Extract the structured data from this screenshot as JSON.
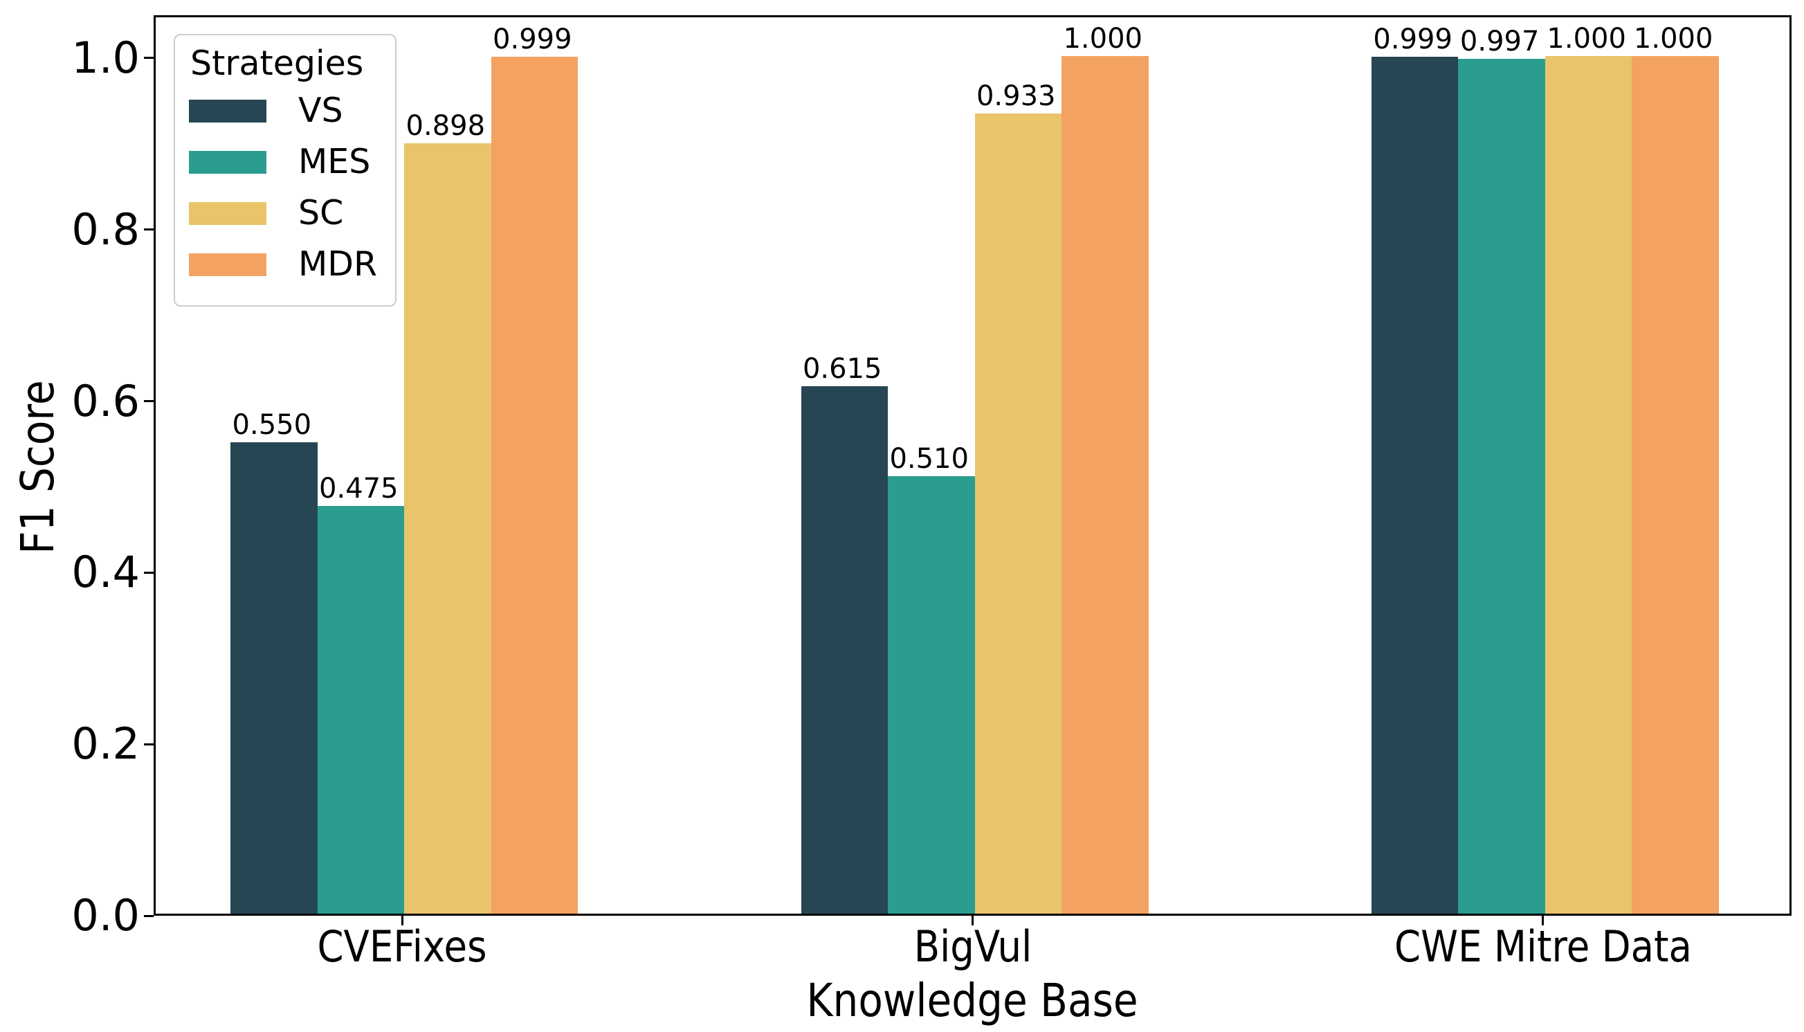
{
  "chart_data": {
    "type": "bar",
    "title": "",
    "xlabel": "Knowledge Base",
    "ylabel": "F1 Score",
    "categories": [
      "CVEFixes",
      "BigVul",
      "CWE Mitre Data"
    ],
    "series": [
      {
        "name": "VS",
        "color": "#264653",
        "values": [
          0.55,
          0.615,
          0.999
        ],
        "labels": [
          "0.550",
          "0.615",
          "0.999"
        ]
      },
      {
        "name": "MES",
        "color": "#2a9d8f",
        "values": [
          0.475,
          0.51,
          0.997
        ],
        "labels": [
          "0.475",
          "0.510",
          "0.997"
        ]
      },
      {
        "name": "SC",
        "color": "#e9c46a",
        "values": [
          0.898,
          0.933,
          1.0
        ],
        "labels": [
          "0.898",
          "0.933",
          "1.000"
        ]
      },
      {
        "name": "MDR",
        "color": "#f4a261",
        "values": [
          0.999,
          1.0,
          1.0
        ],
        "labels": [
          "0.999",
          "1.000",
          "1.000"
        ]
      }
    ],
    "ylim": [
      0,
      1.05
    ],
    "yticks": [
      "0.0",
      "0.2",
      "0.4",
      "0.6",
      "0.8",
      "1.0"
    ],
    "legend": {
      "title": "Strategies",
      "position": "upper-left"
    },
    "grid": false,
    "axis_color": "#000000",
    "background": "#ffffff"
  }
}
